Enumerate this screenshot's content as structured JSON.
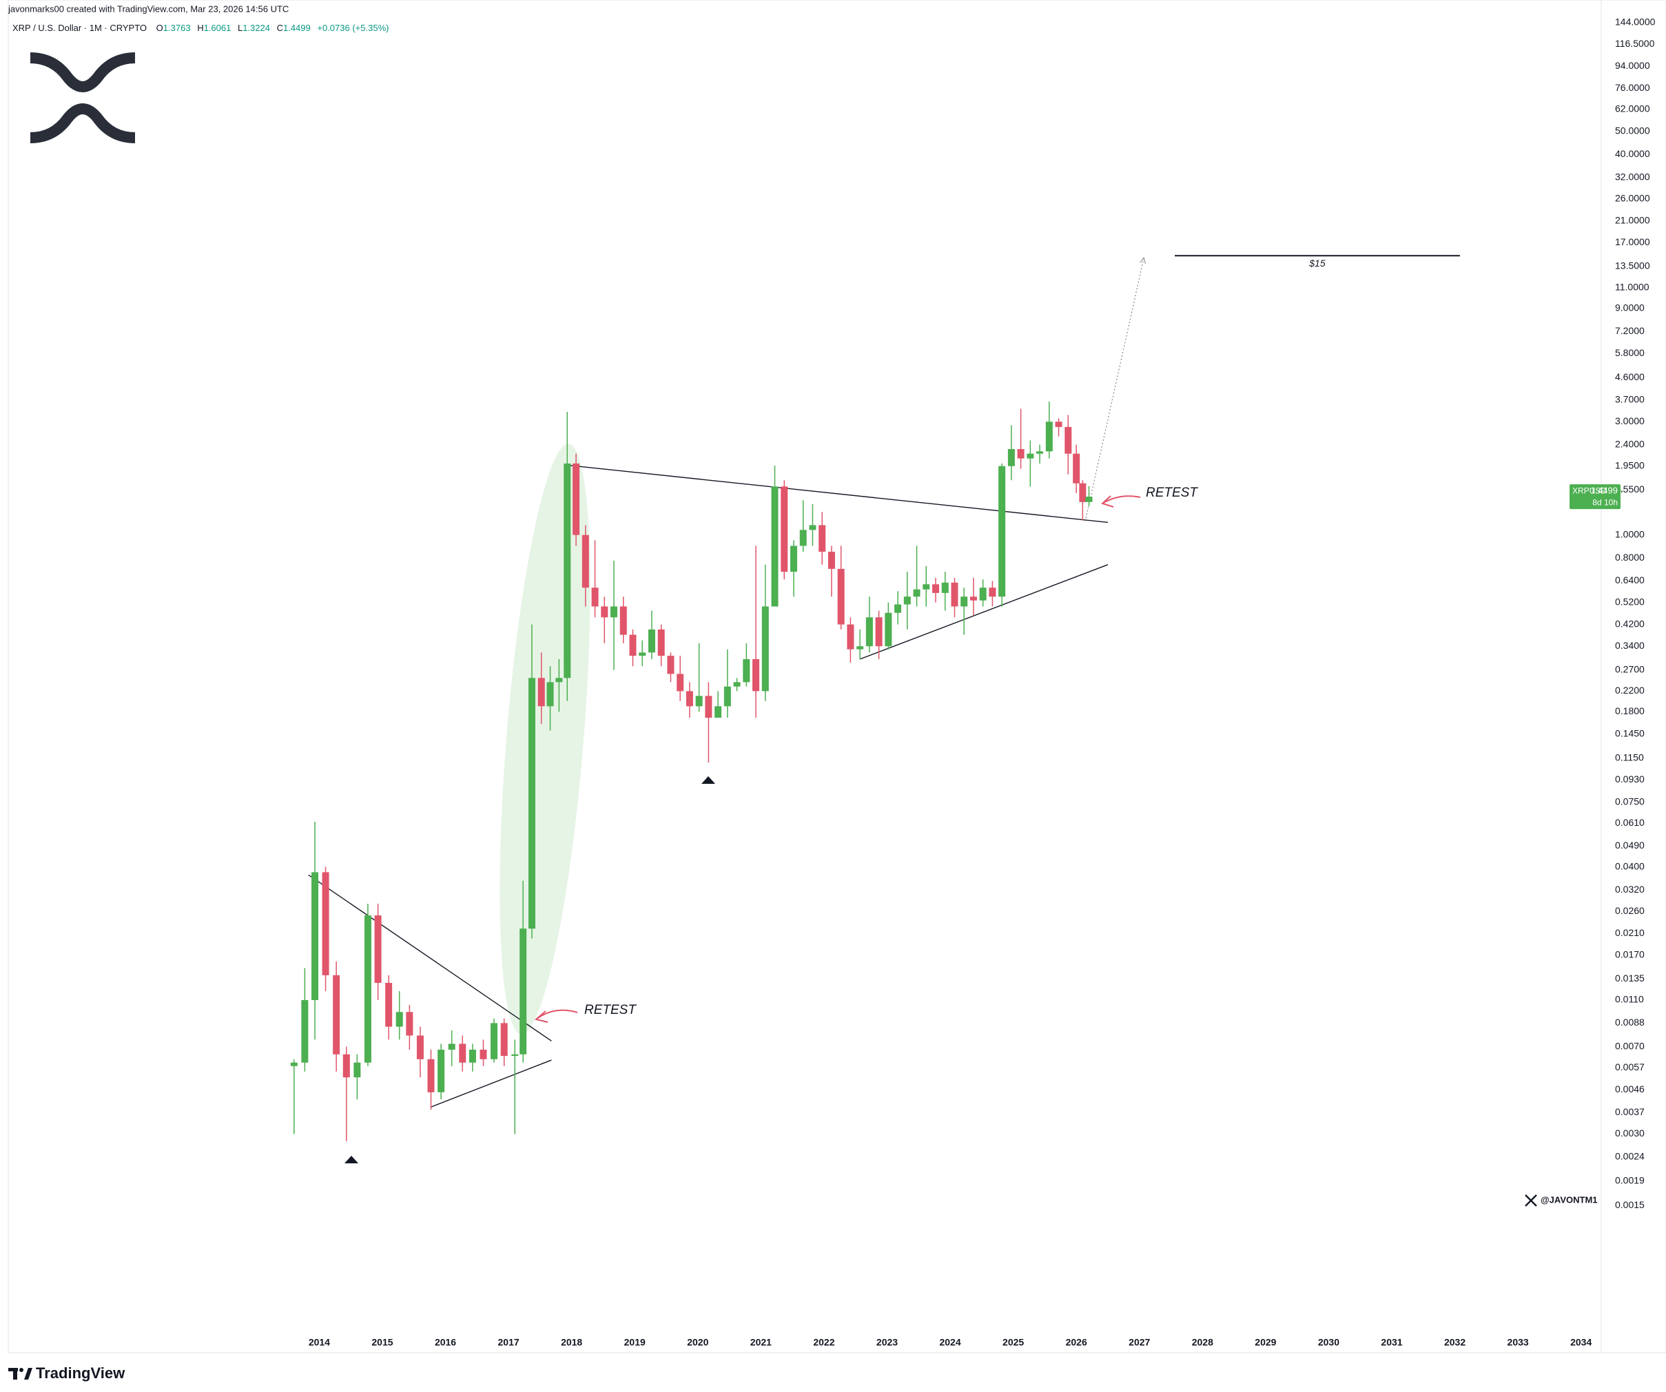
{
  "header": {
    "byline": "javonmarks00 created with TradingView.com, Mar 23, 2026 14:56 UTC",
    "symbol_desc": "XRP / U.S. Dollar · 1M · CRYPTO",
    "ohlc_labels": [
      "O",
      "H",
      "L",
      "C"
    ],
    "change": "+0.0736 (+5.35%)"
  },
  "price_tag": {
    "symbol": "XRPUSD",
    "countdown": "8d 10h"
  },
  "annotations": [
    "RETEST",
    "RETEST"
  ],
  "footer": {
    "brand": "TradingView",
    "handle": "@JAVONTM1"
  },
  "chart_data": {
    "type": "candlestick",
    "log_scale": true,
    "grid": false,
    "up_color": "#4caf50",
    "down_color": "#e0556a",
    "x": [
      2013.6,
      2013.77,
      2013.93,
      2014.1,
      2014.27,
      2014.43,
      2014.6,
      2014.77,
      2014.93,
      2015.1,
      2015.27,
      2015.43,
      2015.6,
      2015.77,
      2015.93,
      2016.1,
      2016.27,
      2016.43,
      2016.6,
      2016.77,
      2016.93,
      2017.1,
      2017.23,
      2017.37,
      2017.52,
      2017.66,
      2017.8,
      2017.93,
      2018.07,
      2018.22,
      2018.37,
      2018.52,
      2018.67,
      2018.82,
      2018.97,
      2019.12,
      2019.27,
      2019.42,
      2019.57,
      2019.72,
      2019.87,
      2020.02,
      2020.17,
      2020.32,
      2020.47,
      2020.62,
      2020.77,
      2020.92,
      2021.07,
      2021.22,
      2021.37,
      2021.52,
      2021.67,
      2021.82,
      2021.97,
      2022.12,
      2022.27,
      2022.42,
      2022.57,
      2022.72,
      2022.87,
      2023.02,
      2023.17,
      2023.32,
      2023.47,
      2023.62,
      2023.77,
      2023.92,
      2024.07,
      2024.22,
      2024.37,
      2024.52,
      2024.67,
      2024.82,
      2024.97,
      2025.12,
      2025.27,
      2025.42,
      2025.57,
      2025.72,
      2025.87,
      2026.0,
      2026.1,
      2026.2
    ],
    "open": [
      0.0058,
      0.006,
      0.011,
      0.038,
      0.014,
      0.0065,
      0.0052,
      0.006,
      0.025,
      0.013,
      0.0085,
      0.0098,
      0.0078,
      0.0062,
      0.0045,
      0.0068,
      0.0072,
      0.006,
      0.0068,
      0.0062,
      0.0088,
      0.0064,
      0.0065,
      0.022,
      0.25,
      0.19,
      0.24,
      0.25,
      2.0,
      1.0,
      0.6,
      0.5,
      0.45,
      0.5,
      0.38,
      0.31,
      0.32,
      0.4,
      0.31,
      0.26,
      0.22,
      0.19,
      0.21,
      0.17,
      0.19,
      0.23,
      0.24,
      0.3,
      0.22,
      0.5,
      1.6,
      0.7,
      0.9,
      1.05,
      1.1,
      0.85,
      0.72,
      0.42,
      0.33,
      0.34,
      0.45,
      0.34,
      0.47,
      0.51,
      0.55,
      0.59,
      0.62,
      0.57,
      0.63,
      0.5,
      0.55,
      0.53,
      0.6,
      0.55,
      1.95,
      2.3,
      2.1,
      2.2,
      2.25,
      3.0,
      2.85,
      2.2,
      1.65,
      1.3763
    ],
    "high": [
      0.0062,
      0.015,
      0.062,
      0.04,
      0.016,
      0.007,
      0.0065,
      0.028,
      0.028,
      0.014,
      0.012,
      0.0105,
      0.0085,
      0.0068,
      0.0072,
      0.0082,
      0.0078,
      0.0072,
      0.0075,
      0.0092,
      0.0092,
      0.0075,
      0.035,
      0.42,
      0.32,
      0.28,
      0.3,
      3.3,
      2.2,
      1.1,
      0.95,
      0.55,
      0.78,
      0.55,
      0.4,
      0.36,
      0.48,
      0.42,
      0.32,
      0.31,
      0.24,
      0.35,
      0.24,
      0.22,
      0.33,
      0.25,
      0.35,
      0.9,
      0.75,
      1.96,
      1.7,
      0.95,
      1.4,
      1.35,
      1.25,
      0.9,
      0.9,
      0.45,
      0.4,
      0.55,
      0.48,
      0.52,
      0.58,
      0.7,
      0.9,
      0.74,
      0.66,
      0.7,
      0.66,
      0.6,
      0.66,
      0.65,
      0.64,
      2.0,
      2.9,
      3.4,
      2.5,
      2.4,
      3.65,
      3.1,
      3.2,
      2.4,
      1.7,
      1.6061
    ],
    "low": [
      0.003,
      0.0055,
      0.0075,
      0.012,
      0.0055,
      0.0028,
      0.0042,
      0.0058,
      0.011,
      0.0075,
      0.0075,
      0.0068,
      0.0052,
      0.0038,
      0.0042,
      0.0058,
      0.0055,
      0.0055,
      0.0058,
      0.006,
      0.0058,
      0.003,
      0.006,
      0.02,
      0.16,
      0.15,
      0.18,
      0.2,
      0.9,
      0.5,
      0.45,
      0.35,
      0.27,
      0.35,
      0.28,
      0.28,
      0.3,
      0.28,
      0.24,
      0.2,
      0.17,
      0.18,
      0.11,
      0.17,
      0.17,
      0.22,
      0.23,
      0.17,
      0.2,
      0.5,
      0.65,
      0.55,
      0.85,
      0.9,
      0.75,
      0.55,
      0.4,
      0.29,
      0.3,
      0.32,
      0.3,
      0.33,
      0.42,
      0.4,
      0.5,
      0.5,
      0.52,
      0.48,
      0.45,
      0.38,
      0.46,
      0.5,
      0.5,
      0.5,
      1.7,
      1.9,
      1.6,
      2.0,
      2.1,
      2.6,
      1.8,
      1.5,
      1.15,
      1.3224
    ],
    "close": [
      0.006,
      0.011,
      0.038,
      0.014,
      0.0065,
      0.0052,
      0.006,
      0.025,
      0.013,
      0.0085,
      0.0098,
      0.0078,
      0.0062,
      0.0045,
      0.0068,
      0.0072,
      0.006,
      0.0068,
      0.0062,
      0.0088,
      0.0064,
      0.0065,
      0.022,
      0.25,
      0.19,
      0.24,
      0.25,
      2.0,
      1.0,
      0.6,
      0.5,
      0.45,
      0.5,
      0.38,
      0.31,
      0.32,
      0.4,
      0.31,
      0.26,
      0.22,
      0.19,
      0.21,
      0.17,
      0.19,
      0.23,
      0.24,
      0.3,
      0.22,
      0.5,
      1.6,
      0.7,
      0.9,
      1.05,
      1.1,
      0.85,
      0.72,
      0.42,
      0.33,
      0.34,
      0.45,
      0.34,
      0.47,
      0.51,
      0.55,
      0.59,
      0.62,
      0.57,
      0.63,
      0.5,
      0.55,
      0.53,
      0.6,
      0.55,
      1.95,
      2.3,
      2.1,
      2.2,
      2.25,
      3.0,
      2.85,
      2.2,
      1.65,
      1.3763,
      1.4499
    ],
    "xlim": [
      2009.07,
      2034.32
    ],
    "xticks": [
      2014,
      2015,
      2016,
      2017,
      2018,
      2019,
      2020,
      2021,
      2022,
      2023,
      2024,
      2025,
      2026,
      2027,
      2028,
      2029,
      2030,
      2031,
      2032,
      2033,
      2034
    ],
    "ylim": [
      0.00036,
      179
    ],
    "yticks": [
      {
        "value": 144,
        "label": "144.0000"
      },
      {
        "value": 116.5,
        "label": "116.5000"
      },
      {
        "value": 94,
        "label": "94.0000"
      },
      {
        "value": 76,
        "label": "76.0000"
      },
      {
        "value": 62,
        "label": "62.0000"
      },
      {
        "value": 50,
        "label": "50.0000"
      },
      {
        "value": 40,
        "label": "40.0000"
      },
      {
        "value": 32,
        "label": "32.0000"
      },
      {
        "value": 26,
        "label": "26.0000"
      },
      {
        "value": 21,
        "label": "21.0000"
      },
      {
        "value": 17,
        "label": "17.0000"
      },
      {
        "value": 13.5,
        "label": "13.5000"
      },
      {
        "value": 11,
        "label": "11.0000"
      },
      {
        "value": 9,
        "label": "9.0000"
      },
      {
        "value": 7.2,
        "label": "7.2000"
      },
      {
        "value": 5.8,
        "label": "5.8000"
      },
      {
        "value": 4.6,
        "label": "4.6000"
      },
      {
        "value": 3.7,
        "label": "3.7000"
      },
      {
        "value": 3.0,
        "label": "3.0000"
      },
      {
        "value": 2.4,
        "label": "2.4000"
      },
      {
        "value": 1.95,
        "label": "1.9500"
      },
      {
        "value": 1.55,
        "label": "1.5500"
      },
      {
        "value": 1.0,
        "label": "1.0000"
      },
      {
        "value": 0.8,
        "label": "0.8000"
      },
      {
        "value": 0.64,
        "label": "0.6400"
      },
      {
        "value": 0.52,
        "label": "0.5200"
      },
      {
        "value": 0.42,
        "label": "0.4200"
      },
      {
        "value": 0.34,
        "label": "0.3400"
      },
      {
        "value": 0.27,
        "label": "0.2700"
      },
      {
        "value": 0.22,
        "label": "0.2200"
      },
      {
        "value": 0.18,
        "label": "0.1800"
      },
      {
        "value": 0.145,
        "label": "0.1450"
      },
      {
        "value": 0.115,
        "label": "0.1150"
      },
      {
        "value": 0.093,
        "label": "0.0930"
      },
      {
        "value": 0.075,
        "label": "0.0750"
      },
      {
        "value": 0.061,
        "label": "0.0610"
      },
      {
        "value": 0.049,
        "label": "0.0490"
      },
      {
        "value": 0.04,
        "label": "0.0400"
      },
      {
        "value": 0.032,
        "label": "0.0320"
      },
      {
        "value": 0.026,
        "label": "0.0260"
      },
      {
        "value": 0.021,
        "label": "0.0210"
      },
      {
        "value": 0.017,
        "label": "0.0170"
      },
      {
        "value": 0.0135,
        "label": "0.0135"
      },
      {
        "value": 0.011,
        "label": "0.0110"
      },
      {
        "value": 0.0088,
        "label": "0.0088"
      },
      {
        "value": 0.007,
        "label": "0.0070"
      },
      {
        "value": 0.0057,
        "label": "0.0057"
      },
      {
        "value": 0.0046,
        "label": "0.0046"
      },
      {
        "value": 0.0037,
        "label": "0.0037"
      },
      {
        "value": 0.003,
        "label": "0.0030"
      },
      {
        "value": 0.0024,
        "label": "0.0024"
      },
      {
        "value": 0.0019,
        "label": "0.0019"
      },
      {
        "value": 0.0015,
        "label": "0.0015"
      }
    ],
    "trendlines": [
      {
        "x": [
          2013.83,
          2017.68
        ],
        "y": [
          0.037,
          0.0074
        ]
      },
      {
        "x": [
          2015.77,
          2017.68
        ],
        "y": [
          0.0039,
          0.00615
        ]
      },
      {
        "x": [
          2017.91,
          2026.5
        ],
        "y": [
          1.97,
          1.13
        ]
      },
      {
        "x": [
          2022.57,
          2026.5
        ],
        "y": [
          0.3,
          0.75
        ]
      }
    ],
    "projection": {
      "x": [
        2026.14,
        2027.07
      ],
      "y": [
        1.14,
        14.7
      ]
    },
    "level": {
      "value": 15,
      "label": "$15",
      "x": [
        2027.56,
        2032.08
      ]
    }
  }
}
